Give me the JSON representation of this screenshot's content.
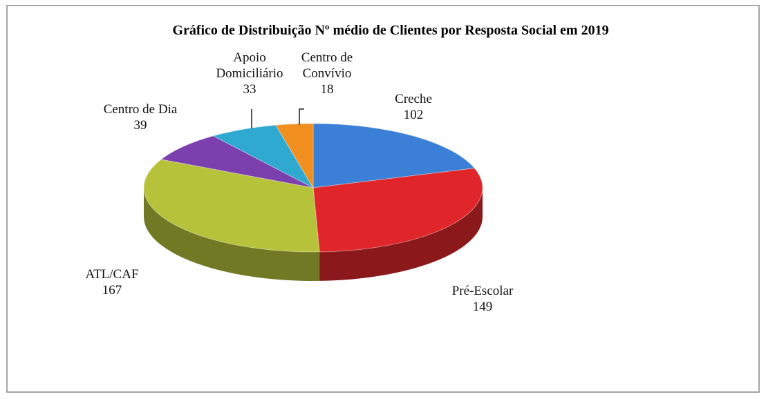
{
  "chart_data": {
    "type": "pie",
    "title": "Gráfico de Distribuição  Nº médio de Clientes por Resposta Social em 2019",
    "categories": [
      "Creche",
      "Pré-Escolar",
      "ATL/CAF",
      "Centro de Dia",
      "Apoio Domiciliário",
      "Centro de Convívio"
    ],
    "values": [
      102,
      149,
      167,
      39,
      33,
      18
    ],
    "colors": [
      "#3b7fd6",
      "#e0262b",
      "#b6c33a",
      "#7b3fae",
      "#2fa9cf",
      "#f08f1f"
    ]
  }
}
